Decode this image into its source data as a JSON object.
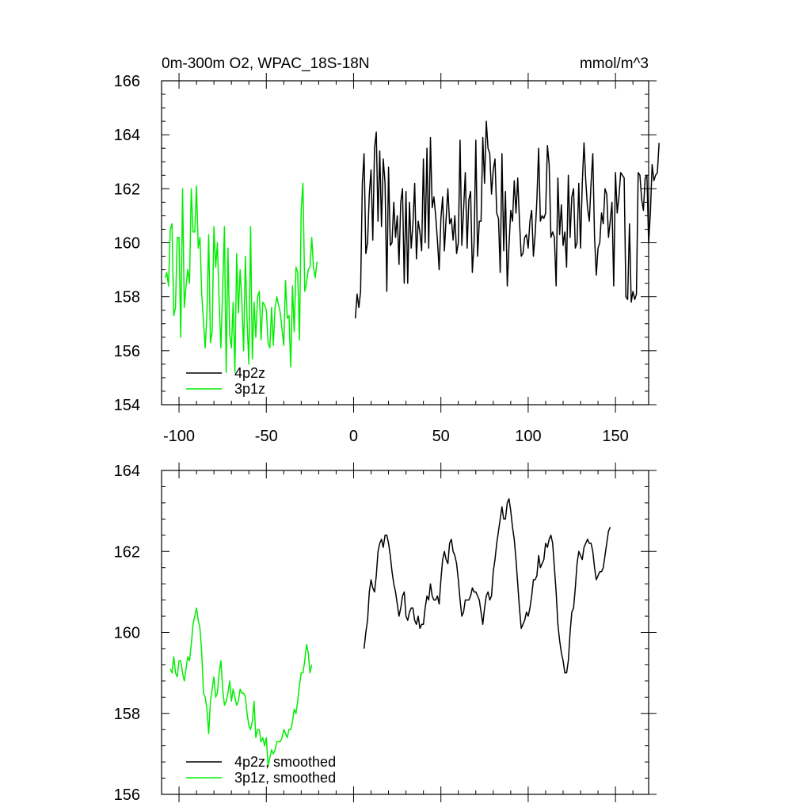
{
  "colors": {
    "model_4p2z": "#000000",
    "model_3p1z": "#00ee00",
    "axis": "#000000"
  },
  "chart_data": [
    {
      "type": "line",
      "title": "0m-300m O2, WPAC_18S-18N",
      "units": "mmol/m^3",
      "xlabel": "",
      "ylabel": "",
      "xlim": [
        -110,
        169
      ],
      "ylim": [
        154,
        166
      ],
      "x_ticks": [
        -100,
        -50,
        0,
        50,
        100,
        150
      ],
      "y_ticks": [
        154,
        156,
        158,
        160,
        162,
        164,
        166
      ],
      "grid": false,
      "legend_position": "bottom-left",
      "series": [
        {
          "name": "4p2z",
          "color": "#000000",
          "x_start": 1,
          "values": [
            157.2,
            158.1,
            157.6,
            158.2,
            162.2,
            163.3,
            159.6,
            160.0,
            161.8,
            162.7,
            160.1,
            163.5,
            164.1,
            160.8,
            163.4,
            160.6,
            163.1,
            162.2,
            158.2,
            162.8,
            159.9,
            160.0,
            161.5,
            160.2,
            161.0,
            159.2,
            161.5,
            162.0,
            158.5,
            161.9,
            158.5,
            161.5,
            159.8,
            160.7,
            162.2,
            159.4,
            160.8,
            160.4,
            159.7,
            163.1,
            160.0,
            163.5,
            159.8,
            163.9,
            161.3,
            161.7,
            161.0,
            160.1,
            159.0,
            160.9,
            161.7,
            159.7,
            160.9,
            162.0,
            160.7,
            160.9,
            160.1,
            161.0,
            159.6,
            160.0,
            163.8,
            159.9,
            161.2,
            162.6,
            159.8,
            161.6,
            161.9,
            158.9,
            160.0,
            163.8,
            159.5,
            160.8,
            160.8,
            163.9,
            162.2,
            164.5,
            163.5,
            163.3,
            161.8,
            162.7,
            163.1,
            161.1,
            160.9,
            158.9,
            163.3,
            159.7,
            161.9,
            158.4,
            159.9,
            161.2,
            160.8,
            162.3,
            161.1,
            162.4,
            160.8,
            159.5,
            159.6,
            160.2,
            160.3,
            159.8,
            160.8,
            161.2,
            159.5,
            160.3,
            161.6,
            163.5,
            160.8,
            161.0,
            160.9,
            161.1,
            163.6,
            162.9,
            160.2,
            160.4,
            160.2,
            158.4,
            162.4,
            160.3,
            161.4,
            159.9,
            160.4,
            159.1,
            162.5,
            160.2,
            161.7,
            162.0,
            159.8,
            160.0,
            162.2,
            159.8,
            162.2,
            163.7,
            162.3,
            161.3,
            160.8,
            162.2,
            163.3,
            160.2,
            158.8,
            159.8,
            160.0,
            161.1,
            160.7,
            162.0,
            161.8,
            160.2,
            160.8,
            161.5,
            158.4,
            162.6,
            161.1,
            161.7,
            162.6,
            162.5,
            162.4,
            158.0,
            157.9,
            160.7,
            157.8,
            158.2,
            157.9,
            158.1,
            162.6,
            162.5,
            161.6,
            161.2,
            162.4,
            162.5,
            160.0,
            161.1,
            162.9,
            162.3,
            162.5,
            162.6,
            163.7
          ]
        },
        {
          "name": "3p1z",
          "color": "#00ee00",
          "x_start": -108,
          "values": [
            158.7,
            158.9,
            158.4,
            160.5,
            160.7,
            157.3,
            157.6,
            160.2,
            160.2,
            156.5,
            162.0,
            157.6,
            158.4,
            159.0,
            158.5,
            162.0,
            160.4,
            160.4,
            162.1,
            159.8,
            160.2,
            158.1,
            157.1,
            156.1,
            157.4,
            160.3,
            156.3,
            156.7,
            160.6,
            159.1,
            160.0,
            157.8,
            156.1,
            158.3,
            160.6,
            155.2,
            159.8,
            156.6,
            156.1,
            157.8,
            155.2,
            159.6,
            157.4,
            159.0,
            157.8,
            156.0,
            159.5,
            157.1,
            155.5,
            160.6,
            155.7,
            157.8,
            156.5,
            158.0,
            158.2,
            156.4,
            157.8,
            157.7,
            157.5,
            156.3,
            156.1,
            157.6,
            156.2,
            157.6,
            158.0,
            157.7,
            157.4,
            156.8,
            156.2,
            158.6,
            157.2,
            157.3,
            155.4,
            158.4,
            156.7,
            159.1,
            158.9,
            156.4,
            161.2,
            162.2,
            158.2,
            158.5,
            159.0,
            159.1,
            160.2,
            159.1,
            158.7,
            159.3
          ]
        }
      ]
    },
    {
      "type": "line",
      "title": "",
      "xlabel": "",
      "ylabel": "",
      "xlim": [
        -110,
        169
      ],
      "ylim": [
        156,
        164
      ],
      "x_ticks": [
        -100,
        -50,
        0,
        50,
        100,
        150
      ],
      "y_ticks": [
        156,
        158,
        160,
        162,
        164
      ],
      "grid": false,
      "legend_position": "bottom-left",
      "series": [
        {
          "name": "4p2z, smoothed",
          "color": "#000000",
          "x_start": 6,
          "values": [
            159.6,
            160.0,
            160.3,
            161.0,
            161.3,
            161.1,
            161.0,
            161.4,
            162.0,
            162.2,
            162.3,
            162.1,
            162.4,
            162.4,
            162.2,
            161.9,
            161.5,
            161.2,
            161.0,
            160.7,
            160.4,
            160.6,
            160.9,
            161.0,
            160.4,
            160.3,
            160.5,
            160.6,
            160.6,
            160.3,
            160.2,
            160.4,
            160.1,
            160.2,
            160.2,
            160.6,
            160.9,
            160.8,
            161.2,
            160.9,
            160.8,
            160.8,
            160.9,
            160.7,
            161.3,
            161.8,
            162.0,
            161.8,
            161.7,
            162.2,
            162.3,
            162.0,
            161.9,
            161.7,
            161.3,
            160.8,
            160.4,
            160.5,
            160.8,
            160.8,
            160.8,
            160.9,
            161.1,
            161.0,
            161.0,
            160.9,
            160.8,
            160.5,
            160.2,
            160.6,
            160.9,
            161.0,
            160.8,
            160.9,
            161.5,
            161.8,
            162.2,
            162.5,
            162.8,
            163.1,
            162.8,
            162.8,
            163.2,
            163.3,
            163.0,
            162.6,
            162.3,
            161.8,
            161.2,
            160.6,
            160.1,
            160.2,
            160.3,
            160.5,
            160.4,
            160.6,
            160.9,
            161.3,
            161.3,
            161.4,
            161.9,
            161.6,
            161.7,
            161.8,
            162.2,
            162.1,
            162.3,
            162.4,
            162.2,
            161.6,
            161.0,
            160.2,
            159.8,
            159.5,
            159.3,
            159.0,
            159.0,
            159.3,
            160.0,
            160.5,
            160.6,
            161.1,
            161.7,
            162.0,
            161.9,
            161.8,
            162.1,
            162.2,
            162.3,
            162.2,
            162.2,
            162.0,
            161.6,
            161.3,
            161.4,
            161.5,
            161.5,
            161.6,
            161.9,
            162.2,
            162.5,
            162.6
          ]
        },
        {
          "name": "3p1z, smoothed",
          "color": "#00ee00",
          "x_start": -105,
          "values": [
            159.1,
            159.0,
            159.4,
            159.0,
            158.9,
            159.3,
            159.3,
            159.0,
            158.8,
            159.1,
            159.4,
            159.3,
            159.7,
            160.2,
            160.4,
            160.6,
            160.3,
            160.1,
            159.5,
            158.5,
            158.4,
            158.1,
            157.5,
            158.3,
            158.6,
            158.9,
            158.4,
            158.5,
            159.0,
            159.3,
            158.6,
            158.2,
            158.3,
            158.5,
            158.8,
            158.3,
            158.6,
            158.4,
            158.2,
            158.3,
            158.6,
            158.5,
            158.5,
            158.4,
            158.0,
            157.7,
            157.6,
            157.8,
            158.3,
            157.4,
            157.6,
            157.6,
            157.3,
            157.4,
            157.2,
            157.4,
            156.7,
            156.9,
            157.1,
            157.0,
            157.1,
            157.3,
            157.3,
            157.3,
            157.4,
            157.6,
            157.5,
            157.4,
            157.6,
            157.6,
            157.8,
            158.1,
            158.0,
            158.3,
            158.7,
            159.0,
            159.0,
            159.3,
            159.7,
            159.5,
            159.0,
            159.2
          ]
        }
      ]
    }
  ]
}
